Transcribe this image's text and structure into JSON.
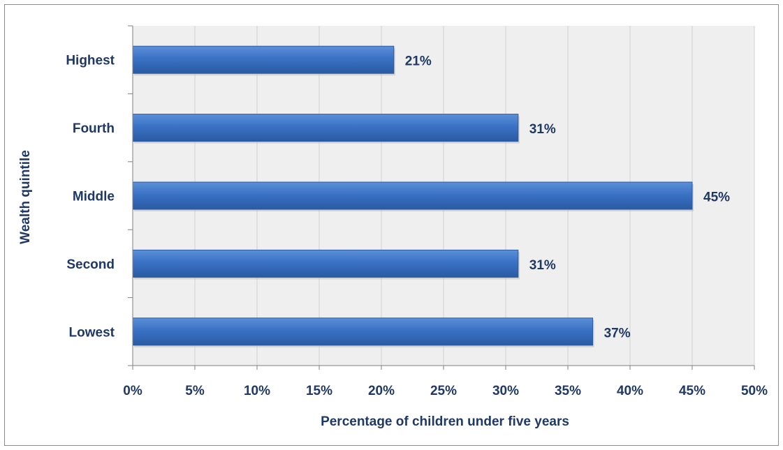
{
  "chart_data": {
    "type": "bar",
    "orientation": "horizontal",
    "categories": [
      "Highest",
      "Fourth",
      "Middle",
      "Second",
      "Lowest"
    ],
    "values": [
      21,
      31,
      45,
      31,
      37
    ],
    "data_labels": [
      "21%",
      "31%",
      "45%",
      "31%",
      "37%"
    ],
    "xlabel": "Percentage of children under five years",
    "ylabel": "Wealth quintile",
    "xlim": [
      0,
      50
    ],
    "x_ticks": [
      "0%",
      "5%",
      "10%",
      "15%",
      "20%",
      "25%",
      "30%",
      "35%",
      "40%",
      "45%",
      "50%"
    ],
    "grid": "vertical",
    "legend": "none",
    "colors": {
      "bar": "#3a72c4",
      "bar_dark": "#2a5aa3",
      "plot_background": "#efefef",
      "gridline": "#d0d0d0",
      "text": "#1f3864"
    }
  }
}
